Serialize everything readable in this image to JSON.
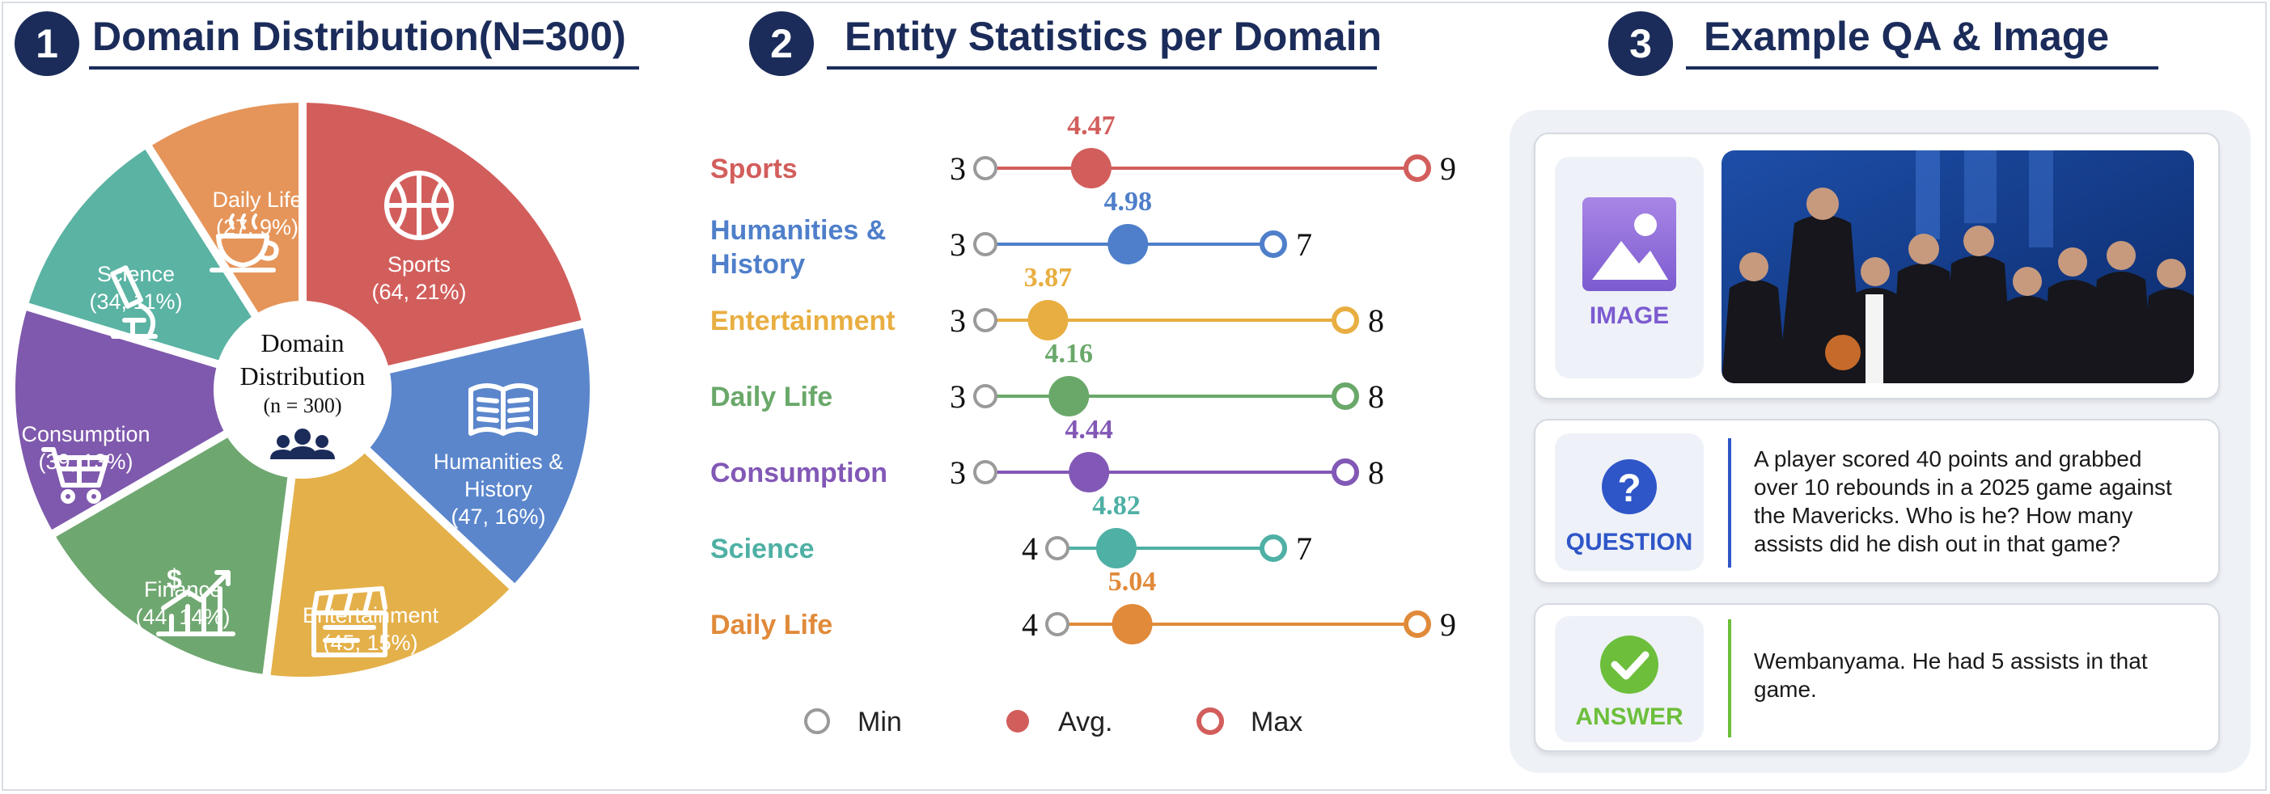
{
  "sections": [
    {
      "number": "1",
      "title": "Domain Distribution(N=300)"
    },
    {
      "number": "2",
      "title": "Entity Statistics per Domain"
    },
    {
      "number": "3",
      "title": "Example QA & Image"
    }
  ],
  "pie": {
    "center_title_line1": "Domain",
    "center_title_line2": "Distribution",
    "center_subtitle": "(n = 300)",
    "center_icon": "users-icon",
    "slices": [
      {
        "name": "Sports",
        "count_label": "(64, 21%)",
        "value": 64,
        "color": "#d25e5c",
        "icon": "basketball-icon"
      },
      {
        "name_line1": "Humanities &",
        "name_line2": "History",
        "count_label": "(47, 16%)",
        "value": 47,
        "color": "#5b86cc",
        "icon": "book-icon"
      },
      {
        "name": "Entertainment",
        "count_label": "(45, 15%)",
        "value": 45,
        "color": "#e4b04a",
        "icon": "clapperboard-icon"
      },
      {
        "name": "Finance",
        "count_label": "(44, 14%)",
        "value": 44,
        "color": "#6fa770",
        "icon": "growth-chart-icon"
      },
      {
        "name": "Consumption",
        "count_label": "(39, 13%)",
        "value": 39,
        "color": "#7f59ad",
        "icon": "shopping-cart-icon"
      },
      {
        "name": "Science",
        "count_label": "(34, 11%)",
        "value": 34,
        "color": "#5ab3a3",
        "icon": "microscope-icon"
      },
      {
        "name_line1": "Daily Life",
        "name_line2": "",
        "count_label": "(27, 9%)",
        "value": 27,
        "color": "#e5955a",
        "icon": "coffee-cup-icon"
      }
    ]
  },
  "chart_data": {
    "type": "dumbbell",
    "categories": [
      "Sports",
      "Humanities & History",
      "Entertainment",
      "Daily Life",
      "Consumption",
      "Science",
      "Daily Life"
    ],
    "series": [
      {
        "name": "Min",
        "values": [
          3,
          3,
          3,
          3,
          3,
          4,
          4
        ]
      },
      {
        "name": "Avg.",
        "values": [
          4.47,
          4.98,
          3.87,
          4.16,
          4.44,
          4.82,
          5.04
        ]
      },
      {
        "name": "Max",
        "values": [
          9,
          7,
          8,
          8,
          8,
          7,
          9
        ]
      }
    ],
    "colors": [
      "#d25e5c",
      "#4f7fca",
      "#e8ae41",
      "#6aa86a",
      "#8258b6",
      "#4fb0a5",
      "#e08a3a"
    ],
    "labels": {
      "min": [
        "3",
        "3",
        "3",
        "3",
        "3",
        "4",
        "4"
      ],
      "avg": [
        "4.47",
        "4.98",
        "3.87",
        "4.16",
        "4.44",
        "4.82",
        "5.04"
      ],
      "max": [
        "9",
        "7",
        "8",
        "8",
        "8",
        "7",
        "9"
      ]
    },
    "category_label_lines": [
      [
        "Sports"
      ],
      [
        "Humanities &",
        "History"
      ],
      [
        "Entertainment"
      ],
      [
        "Daily Life"
      ],
      [
        "Consumption"
      ],
      [
        "Science"
      ],
      [
        "Daily Life"
      ]
    ],
    "xlim": [
      3,
      9
    ],
    "grid": false,
    "legend": {
      "position": "bottom",
      "entries": [
        "Min",
        "Avg.",
        "Max"
      ]
    }
  },
  "example": {
    "image_label": "IMAGE",
    "image_icon": "image-icon",
    "photo_icon": "photo-thumbnail",
    "question_label": "QUESTION",
    "question_icon": "question-mark-icon",
    "question_text": "A player scored 40 points and grabbed over 10 rebounds in a 2025 game against the Mavericks. Who is he? How many assists did he dish out in that game?",
    "answer_label": "ANSWER",
    "answer_icon": "check-icon",
    "answer_text": "Wembanyama. He had 5 assists in that game."
  }
}
